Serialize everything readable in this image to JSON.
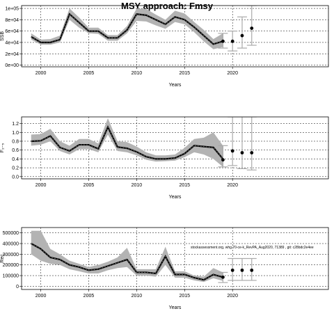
{
  "title": "MSY approach: Fmsy",
  "chart_data": [
    {
      "type": "line",
      "panel": "SSB",
      "ylabel": "SSB",
      "xlabel": "Years",
      "xlim": [
        1998,
        2030
      ],
      "ylim": [
        -3000,
        105000
      ],
      "yticks": [
        0,
        20000,
        40000,
        60000,
        80000,
        100000
      ],
      "ytick_labels": [
        "0e+00",
        "2e+04",
        "4e+04",
        "6e+04",
        "8e+04",
        "1e+05"
      ],
      "xticks": [
        2000,
        2005,
        2010,
        2015,
        2020
      ],
      "grid": true,
      "x": [
        1999,
        2000,
        2001,
        2002,
        2003,
        2004,
        2005,
        2006,
        2007,
        2008,
        2009,
        2010,
        2011,
        2012,
        2013,
        2014,
        2015,
        2016,
        2017,
        2018,
        2019
      ],
      "median": [
        50000,
        40000,
        40000,
        45000,
        90000,
        75000,
        60000,
        60000,
        48000,
        48000,
        62000,
        90000,
        88000,
        80000,
        72000,
        85000,
        80000,
        67000,
        52000,
        37000,
        42000
      ],
      "lower": [
        45000,
        36000,
        36000,
        40000,
        80000,
        66000,
        56000,
        55000,
        43000,
        43000,
        56000,
        78000,
        77000,
        70000,
        64000,
        76000,
        72000,
        58000,
        42000,
        28000,
        32000
      ],
      "upper": [
        56000,
        45000,
        46000,
        52000,
        100000,
        84000,
        66000,
        66000,
        53000,
        53000,
        69000,
        100000,
        99000,
        89000,
        80000,
        96000,
        91000,
        76000,
        62000,
        46000,
        56000
      ],
      "proj_points": [
        {
          "x": 2019,
          "y": 42000
        },
        {
          "x": 2020,
          "y": 42000
        },
        {
          "x": 2021,
          "y": 52000
        },
        {
          "x": 2022,
          "y": 65000
        }
      ],
      "proj_intervals": [
        {
          "x": 2019,
          "lo": 30000,
          "hi": 56000
        },
        {
          "x": 2020,
          "lo": 25000,
          "hi": 60000
        },
        {
          "x": 2021,
          "lo": 30000,
          "hi": 85000
        },
        {
          "x": 2022,
          "lo": 35000,
          "hi": 105000
        }
      ]
    },
    {
      "type": "line",
      "panel": "F",
      "ylabel": "F₂₋₅",
      "xlabel": "Years",
      "xlim": [
        1998,
        2030
      ],
      "ylim": [
        -0.05,
        1.35
      ],
      "yticks": [
        0.0,
        0.2,
        0.4,
        0.6,
        0.8,
        1.0,
        1.2
      ],
      "ytick_labels": [
        "0.0",
        "0.2",
        "0.4",
        "0.6",
        "0.8",
        "1.0",
        "1.2"
      ],
      "xticks": [
        2000,
        2005,
        2010,
        2015,
        2020
      ],
      "grid": true,
      "x": [
        1999,
        2000,
        2001,
        2002,
        2003,
        2004,
        2005,
        2006,
        2007,
        2008,
        2009,
        2010,
        2011,
        2012,
        2013,
        2014,
        2015,
        2016,
        2017,
        2018,
        2019
      ],
      "median": [
        0.8,
        0.81,
        0.92,
        0.66,
        0.58,
        0.72,
        0.72,
        0.63,
        1.12,
        0.67,
        0.64,
        0.56,
        0.45,
        0.4,
        0.4,
        0.42,
        0.52,
        0.7,
        0.68,
        0.66,
        0.4
      ],
      "lower": [
        0.7,
        0.72,
        0.8,
        0.58,
        0.5,
        0.62,
        0.62,
        0.55,
        0.95,
        0.58,
        0.55,
        0.48,
        0.38,
        0.34,
        0.35,
        0.36,
        0.44,
        0.55,
        0.5,
        0.4,
        0.22
      ],
      "upper": [
        0.95,
        0.96,
        1.08,
        0.8,
        0.7,
        0.85,
        0.85,
        0.75,
        1.32,
        0.8,
        0.78,
        0.68,
        0.55,
        0.48,
        0.48,
        0.5,
        0.65,
        0.85,
        0.88,
        1.0,
        0.7
      ],
      "proj_points": [
        {
          "x": 2019,
          "y": 0.38
        },
        {
          "x": 2020,
          "y": 0.58
        },
        {
          "x": 2021,
          "y": 0.54
        },
        {
          "x": 2022,
          "y": 0.54
        }
      ],
      "proj_intervals": [
        {
          "x": 2019,
          "lo": 0.22,
          "hi": 0.7
        },
        {
          "x": 2020,
          "lo": 0.25,
          "hi": 1.35
        },
        {
          "x": 2021,
          "lo": 0.18,
          "hi": 1.35
        },
        {
          "x": 2022,
          "lo": 0.15,
          "hi": 1.35
        }
      ]
    },
    {
      "type": "line",
      "panel": "Recruitment",
      "ylabel": "Rec",
      "xlabel": "Years",
      "xlim": [
        1998,
        2030
      ],
      "ylim": [
        -30000,
        550000
      ],
      "yticks": [
        0,
        100000,
        200000,
        300000,
        400000,
        500000
      ],
      "ytick_labels": [
        "0",
        "100000",
        "200000",
        "300000",
        "400000",
        "500000"
      ],
      "xticks": [
        2000,
        2005,
        2010,
        2015,
        2020
      ],
      "grid": true,
      "x": [
        1999,
        2000,
        2001,
        2002,
        2003,
        2004,
        2005,
        2006,
        2007,
        2008,
        2009,
        2010,
        2011,
        2012,
        2013,
        2014,
        2015,
        2016,
        2017,
        2018,
        2019
      ],
      "median": [
        400000,
        350000,
        270000,
        250000,
        200000,
        180000,
        150000,
        160000,
        190000,
        220000,
        250000,
        130000,
        130000,
        120000,
        280000,
        110000,
        110000,
        80000,
        60000,
        110000,
        85000
      ],
      "lower": [
        300000,
        240000,
        210000,
        200000,
        160000,
        140000,
        120000,
        120000,
        150000,
        170000,
        180000,
        100000,
        100000,
        90000,
        200000,
        80000,
        80000,
        55000,
        40000,
        75000,
        50000
      ],
      "upper": [
        520000,
        520000,
        350000,
        300000,
        240000,
        210000,
        180000,
        200000,
        230000,
        270000,
        360000,
        160000,
        160000,
        160000,
        370000,
        140000,
        140000,
        100000,
        90000,
        170000,
        130000
      ],
      "proj_points": [
        {
          "x": 2019,
          "y": 85000
        },
        {
          "x": 2020,
          "y": 150000
        },
        {
          "x": 2021,
          "y": 150000
        },
        {
          "x": 2022,
          "y": 150000
        }
      ],
      "proj_intervals": [
        {
          "x": 2019,
          "lo": 35000,
          "hi": 130000
        },
        {
          "x": 2020,
          "lo": 55000,
          "hi": 260000
        },
        {
          "x": 2021,
          "lo": 55000,
          "hi": 260000
        },
        {
          "x": 2022,
          "lo": 55000,
          "hi": 260000
        }
      ],
      "annotation": "stockassessment.org, whg.70-ce-k_RevPA_Aug2020, 71389 , git: c28bdc2e4ee"
    }
  ]
}
